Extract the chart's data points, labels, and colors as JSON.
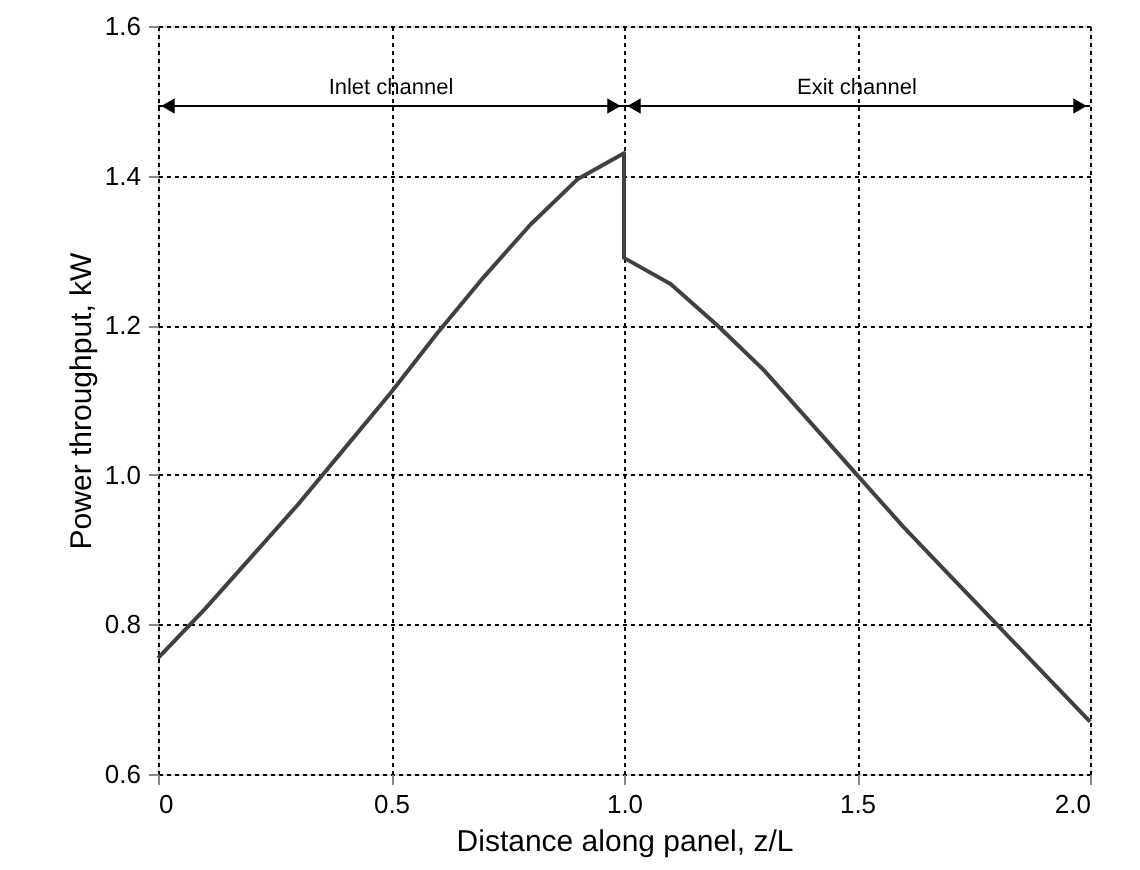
{
  "chart_data": {
    "type": "line",
    "xlabel": "Distance along panel, z/L",
    "ylabel": "Power throughput, kW",
    "x": [
      0,
      0.1,
      0.2,
      0.3,
      0.4,
      0.5,
      0.6,
      0.7,
      0.8,
      0.9,
      1.0,
      1.0,
      1.1,
      1.2,
      1.3,
      1.4,
      1.5,
      1.6,
      1.7,
      1.8,
      1.9,
      2.0
    ],
    "series": [
      {
        "color": "#404040",
        "values": [
          0.755,
          0.82,
          0.89,
          0.96,
          1.035,
          1.11,
          1.19,
          1.265,
          1.335,
          1.395,
          1.43,
          1.29,
          1.255,
          1.2,
          1.14,
          1.07,
          1.0,
          0.93,
          0.865,
          0.8,
          0.735,
          0.67
        ]
      }
    ],
    "xlim": [
      0,
      2
    ],
    "xticks": [
      {
        "value": 0,
        "label": "0"
      },
      {
        "value": 0.5,
        "label": "0.5"
      },
      {
        "value": 1,
        "label": "1.0"
      },
      {
        "value": 1.5,
        "label": "1.5"
      },
      {
        "value": 2,
        "label": "2.0"
      }
    ],
    "ylim": [
      0.6,
      1.6
    ],
    "yticks": [
      {
        "value": 0.6,
        "label": "0.6"
      },
      {
        "value": 0.8,
        "label": "0.8"
      },
      {
        "value": 1.0,
        "label": "1.0"
      },
      {
        "value": 1.2,
        "label": "1.2"
      },
      {
        "value": 1.4,
        "label": "1.4"
      },
      {
        "value": 1.6,
        "label": "1.6"
      }
    ],
    "annotations": [
      "Inlet channel",
      "Exit channel"
    ],
    "grid": true,
    "line_style": "solid"
  }
}
